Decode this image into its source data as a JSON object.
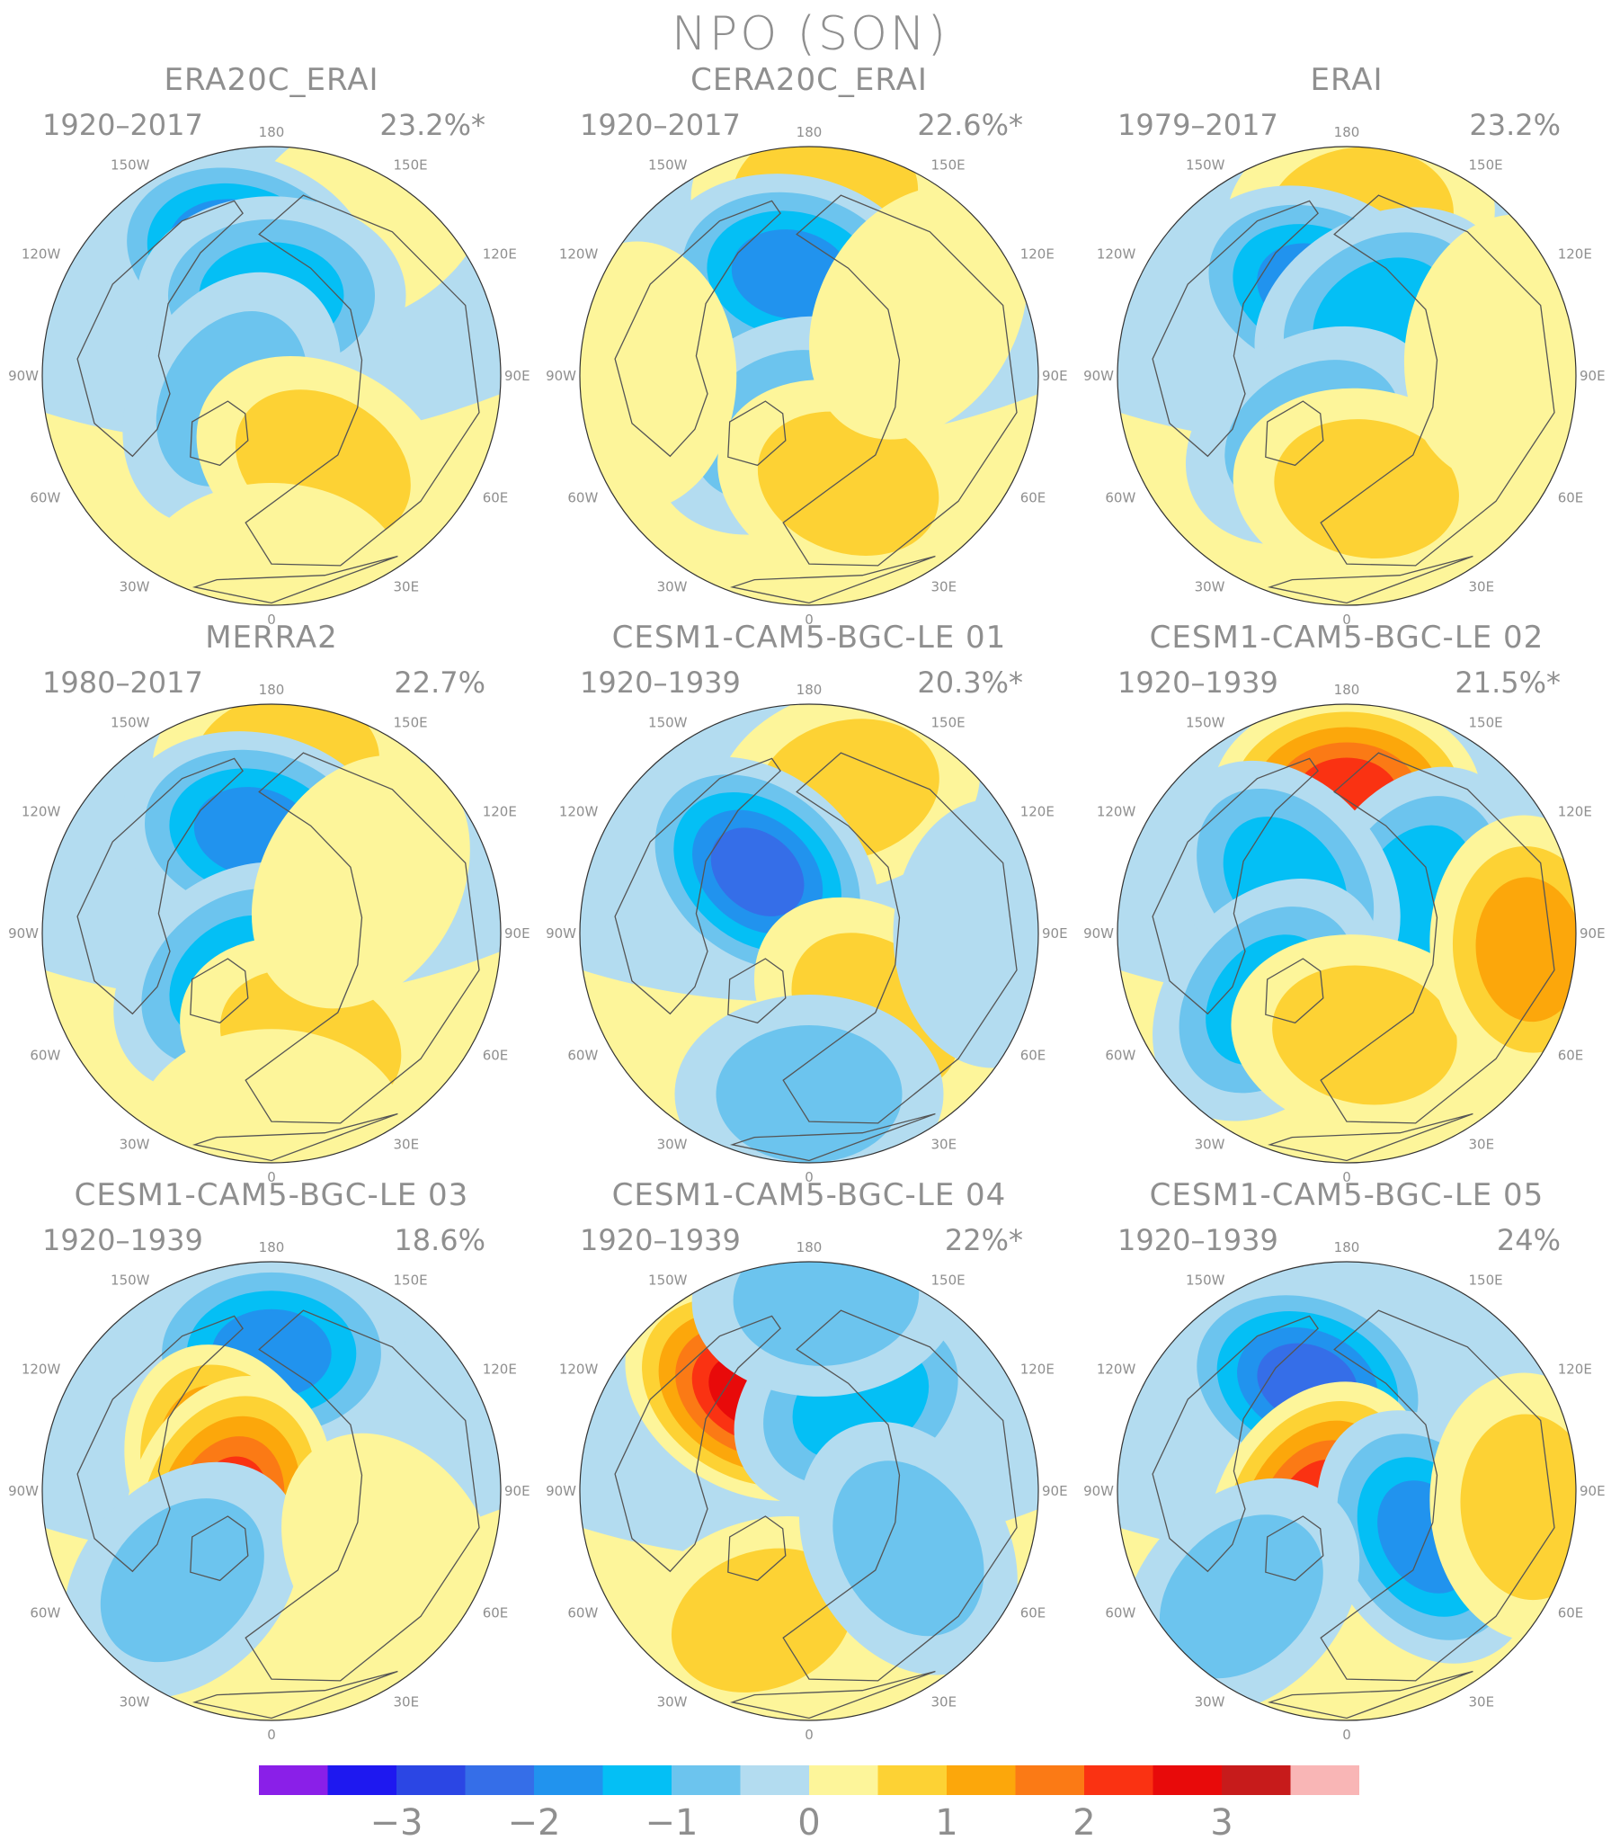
{
  "title": "NPO (SON)",
  "colors": {
    "text": "#8f8f8f",
    "ocean_neutral": "#b3dcf0",
    "land_neutral": "#fdf59a",
    "coast": "#555555"
  },
  "longitude_labels": {
    "top": "180",
    "bottom": "0",
    "w150": "150W",
    "e150": "150E",
    "w120": "120W",
    "e120": "120E",
    "w90": "90W",
    "e90": "90E",
    "w60": "60W",
    "e60": "60E",
    "w30": "30W",
    "e30": "30E"
  },
  "panels": [
    {
      "title": "ERA20C_ERAI",
      "period": "1920–2017",
      "variance": "23.2%*",
      "anomalies": [
        {
          "lon": 150,
          "r": 0.8,
          "value": 0.5
        },
        {
          "lon": -165,
          "r": 0.55,
          "value": -2.4
        },
        {
          "lon": 180,
          "r": 0.35,
          "value": -1.5
        },
        {
          "lon": -60,
          "r": 0.2,
          "value": -1.0
        },
        {
          "lon": 30,
          "r": 0.45,
          "value": 0.8
        },
        {
          "lon": 0,
          "r": 0.9,
          "value": 0.4
        }
      ]
    },
    {
      "title": "CERA20C_ERAI",
      "period": "1920–2017",
      "variance": "22.6%*",
      "anomalies": [
        {
          "lon": 175,
          "r": 0.8,
          "value": 0.8
        },
        {
          "lon": -170,
          "r": 0.45,
          "value": -2.0
        },
        {
          "lon": -30,
          "r": 0.25,
          "value": -1.2
        },
        {
          "lon": 20,
          "r": 0.5,
          "value": 0.9
        },
        {
          "lon": 120,
          "r": 0.55,
          "value": 0.6
        },
        {
          "lon": -90,
          "r": 0.75,
          "value": 0.4
        }
      ]
    },
    {
      "title": "ERAI",
      "period": "1979–2017",
      "variance": "23.2%",
      "anomalies": [
        {
          "lon": 175,
          "r": 0.7,
          "value": 1.1
        },
        {
          "lon": -160,
          "r": 0.4,
          "value": -1.8
        },
        {
          "lon": 150,
          "r": 0.3,
          "value": -1.5
        },
        {
          "lon": -30,
          "r": 0.3,
          "value": -1.2
        },
        {
          "lon": 10,
          "r": 0.5,
          "value": 1.0
        },
        {
          "lon": 100,
          "r": 0.7,
          "value": 0.3
        }
      ]
    },
    {
      "title": "MERRA2",
      "period": "1980–2017",
      "variance": "22.7%",
      "anomalies": [
        {
          "lon": 175,
          "r": 0.75,
          "value": 1.0
        },
        {
          "lon": -170,
          "r": 0.45,
          "value": -2.0
        },
        {
          "lon": -40,
          "r": 0.25,
          "value": -1.3
        },
        {
          "lon": 20,
          "r": 0.5,
          "value": 1.0
        },
        {
          "lon": 120,
          "r": 0.45,
          "value": 0.6
        },
        {
          "lon": 0,
          "r": 0.85,
          "value": 0.4
        }
      ]
    },
    {
      "title": "CESM1-CAM5-BGC-LE 01",
      "period": "1920–1939",
      "variance": "20.3%*",
      "anomalies": [
        {
          "lon": 165,
          "r": 0.65,
          "value": 1.2
        },
        {
          "lon": -140,
          "r": 0.35,
          "value": -2.7
        },
        {
          "lon": 40,
          "r": 0.45,
          "value": 1.0
        },
        {
          "lon": 0,
          "r": 0.7,
          "value": -1.0
        },
        {
          "lon": 90,
          "r": 0.8,
          "value": -0.4
        }
      ]
    },
    {
      "title": "CESM1-CAM5-BGC-LE 02",
      "period": "1920–1939",
      "variance": "21.5%*",
      "anomalies": [
        {
          "lon": 180,
          "r": 0.6,
          "value": 2.5
        },
        {
          "lon": 120,
          "r": 0.35,
          "value": -1.7
        },
        {
          "lon": -130,
          "r": 0.35,
          "value": -1.3
        },
        {
          "lon": -50,
          "r": 0.45,
          "value": -1.7
        },
        {
          "lon": 10,
          "r": 0.45,
          "value": 1.0
        },
        {
          "lon": 85,
          "r": 0.8,
          "value": 1.5
        }
      ]
    },
    {
      "title": "CESM1-CAM5-BGC-LE 03",
      "period": "1920–1939",
      "variance": "18.6%",
      "anomalies": [
        {
          "lon": 180,
          "r": 0.6,
          "value": -1.8
        },
        {
          "lon": -110,
          "r": 0.2,
          "value": 2.3
        },
        {
          "lon": -70,
          "r": 0.2,
          "value": 2.5
        },
        {
          "lon": -45,
          "r": 0.55,
          "value": -1.0
        },
        {
          "lon": 60,
          "r": 0.6,
          "value": 0.5
        }
      ]
    },
    {
      "title": "CESM1-CAM5-BGC-LE 04",
      "period": "1920–1939",
      "variance": "22%*",
      "anomalies": [
        {
          "lon": -150,
          "r": 0.5,
          "value": 2.8
        },
        {
          "lon": 150,
          "r": 0.45,
          "value": -1.7
        },
        {
          "lon": 175,
          "r": 0.85,
          "value": -1.0
        },
        {
          "lon": -20,
          "r": 0.6,
          "value": 1.0
        },
        {
          "lon": 60,
          "r": 0.5,
          "value": -0.8
        }
      ]
    },
    {
      "title": "CESM1-CAM5-BGC-LE 05",
      "period": "1920–1939",
      "variance": "24%",
      "anomalies": [
        {
          "lon": -160,
          "r": 0.5,
          "value": -2.6
        },
        {
          "lon": -60,
          "r": 0.15,
          "value": 2.3
        },
        {
          "lon": 60,
          "r": 0.4,
          "value": -2.0
        },
        {
          "lon": -45,
          "r": 0.65,
          "value": -1.2
        },
        {
          "lon": 85,
          "r": 0.8,
          "value": 1.0
        }
      ]
    }
  ],
  "colorbar": {
    "bins": [
      {
        "max": -3.25,
        "color": "#8a1fe8"
      },
      {
        "max": -2.75,
        "color": "#1e18f0"
      },
      {
        "max": -2.25,
        "color": "#2b46e4"
      },
      {
        "max": -1.75,
        "color": "#356ee8"
      },
      {
        "max": -1.25,
        "color": "#2193ee"
      },
      {
        "max": -0.75,
        "color": "#04bff5"
      },
      {
        "max": -0.25,
        "color": "#6cc4ee"
      },
      {
        "max": 0.0,
        "color": "#b3dcf0"
      },
      {
        "max": 0.25,
        "color": "#fdf59a"
      },
      {
        "max": 0.75,
        "color": "#fdd234"
      },
      {
        "max": 1.25,
        "color": "#fca70b"
      },
      {
        "max": 1.75,
        "color": "#fb7a15"
      },
      {
        "max": 2.25,
        "color": "#fa3212"
      },
      {
        "max": 2.75,
        "color": "#e80a0a"
      },
      {
        "max": 3.25,
        "color": "#c71b1b"
      },
      {
        "max": 99.0,
        "color": "#f9b6b6"
      }
    ],
    "tick_labels": [
      "−3",
      "−2",
      "−1",
      "0",
      "1",
      "2",
      "3"
    ]
  }
}
